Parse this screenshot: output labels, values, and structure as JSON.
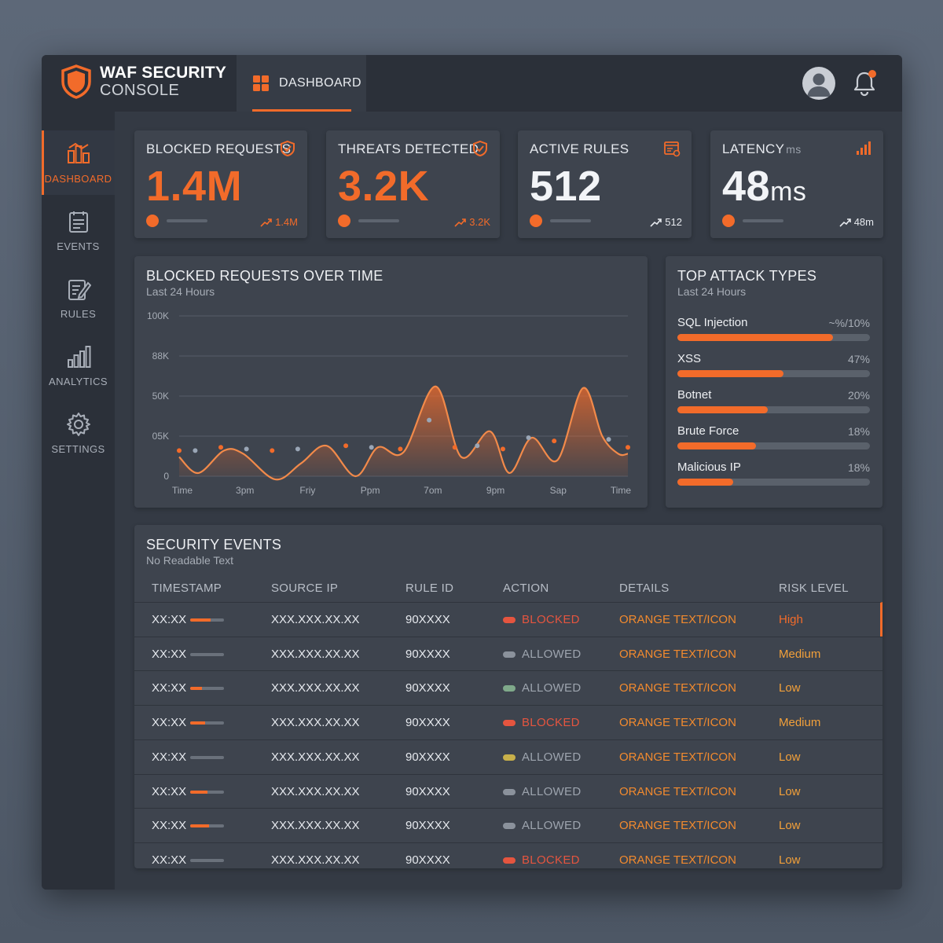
{
  "brand": {
    "line1": "WAF SECURITY",
    "line2": "CONSOLE"
  },
  "topnav": {
    "tab_label": "DASHBOARD"
  },
  "colors": {
    "accent": "#f26b2a",
    "background": "#343a44",
    "card": "#3e444e"
  },
  "sidebar": {
    "items": [
      {
        "label": "DASHBOARD",
        "icon": "dashboard-icon",
        "active": true
      },
      {
        "label": "EVENTS",
        "icon": "events-icon",
        "active": false
      },
      {
        "label": "RULES",
        "icon": "rules-icon",
        "active": false
      },
      {
        "label": "ANALYTICS",
        "icon": "analytics-icon",
        "active": false
      },
      {
        "label": "SETTINGS",
        "icon": "settings-icon",
        "active": false
      }
    ]
  },
  "kpis": {
    "blocked": {
      "title": "BLOCKED REQUESTS",
      "value": "1.4M",
      "trend": "1.4M",
      "icon": "shield-check-icon"
    },
    "threats": {
      "title": "THREATS DETECTED",
      "value": "3.2K",
      "trend": "3.2K",
      "icon": "shield-check-icon"
    },
    "rules": {
      "title": "ACTIVE RULES",
      "value": "512",
      "trend": "512",
      "icon": "rules-list-icon"
    },
    "latency": {
      "title": "LATENCY",
      "title_unit": "ms",
      "value": "48",
      "value_unit": "ms",
      "trend": "48m",
      "icon": "signal-bars-icon"
    }
  },
  "chart_panel": {
    "title": "BLOCKED REQUESTS OVER TIME",
    "subtitle": "Last 24 Hours"
  },
  "chart_data": {
    "type": "area",
    "title": "BLOCKED REQUESTS OVER TIME",
    "subtitle": "Last 24 Hours",
    "x_tick_labels": [
      "Time",
      "3pm",
      "Friy",
      "Ppm",
      "7om",
      "9pm",
      "Sap",
      "Time"
    ],
    "y_tick_labels": [
      "0",
      "05K",
      "50K",
      "88K",
      "100K"
    ],
    "ylim": [
      0,
      100
    ],
    "grid": true,
    "x": [
      0,
      0.3,
      0.7,
      1.0,
      1.5,
      1.9,
      2.3,
      2.75,
      3.1,
      3.5,
      4.0,
      4.4,
      4.85,
      5.15,
      5.5,
      5.9,
      6.3,
      6.6,
      6.85,
      7.0
    ],
    "y": [
      12,
      2,
      16,
      14,
      -2,
      8,
      19,
      0,
      18,
      15,
      56,
      12,
      28,
      2,
      24,
      10,
      55,
      25,
      14,
      14
    ],
    "scatter_points": {
      "x": [
        0.0,
        0.25,
        0.65,
        1.05,
        1.45,
        1.85,
        2.6,
        3.0,
        3.45,
        3.9,
        4.3,
        4.65,
        5.05,
        5.45,
        5.85,
        6.7,
        7.0
      ],
      "y": [
        16,
        16,
        18,
        17,
        16,
        17,
        19,
        18,
        17,
        35,
        18,
        19,
        17,
        24,
        22,
        23,
        18
      ]
    }
  },
  "attacks": {
    "title": "TOP ATTACK TYPES",
    "subtitle": "Last 24 Hours",
    "items": [
      {
        "name": "SQL Injection",
        "pct": "~%/10%",
        "fill": 0.81
      },
      {
        "name": "XSS",
        "pct": "47%",
        "fill": 0.55
      },
      {
        "name": "Botnet",
        "pct": "20%",
        "fill": 0.47
      },
      {
        "name": "Brute Force",
        "pct": "18%",
        "fill": 0.41
      },
      {
        "name": "Malicious IP",
        "pct": "18%",
        "fill": 0.29
      }
    ]
  },
  "events": {
    "title": "SECURITY EVENTS",
    "subtitle": "No Readable Text",
    "columns": [
      "TIMESTAMP",
      "SOURCE IP",
      "RULE ID",
      "ACTION",
      "DETAILS",
      "RISK LEVEL"
    ],
    "rows": [
      {
        "time": "XX:XX",
        "bar": 0.6,
        "ip": "XXX.XXX.XX.XX",
        "rule": "90XXXX",
        "action": "BLOCKED",
        "action_color": "#e5553f",
        "pill_color": "#e5553f",
        "details": "ORANGE TEXT/ICON",
        "risk": "High",
        "risk_color": "#f26b2a"
      },
      {
        "time": "XX:XX",
        "bar": 0.0,
        "ip": "XXX.XXX.XX.XX",
        "rule": "90XXXX",
        "action": "ALLOWED",
        "action_color": "#9da4ae",
        "pill_color": "#8b929c",
        "details": "ORANGE TEXT/ICON",
        "risk": "Medium",
        "risk_color": "#f2a03a"
      },
      {
        "time": "XX:XX",
        "bar": 0.35,
        "ip": "XXX.XXX.XX.XX",
        "rule": "90XXXX",
        "action": "ALLOWED",
        "action_color": "#9da4ae",
        "pill_color": "#7fa98a",
        "details": "ORANGE TEXT/ICON",
        "risk": "Low",
        "risk_color": "#f2a03a"
      },
      {
        "time": "XX:XX",
        "bar": 0.45,
        "ip": "XXX.XXX.XX.XX",
        "rule": "90XXXX",
        "action": "BLOCKED",
        "action_color": "#e5553f",
        "pill_color": "#e5553f",
        "details": "ORANGE TEXT/ICON",
        "risk": "Medium",
        "risk_color": "#f2a03a"
      },
      {
        "time": "XX:XX",
        "bar": 0.0,
        "ip": "XXX.XXX.XX.XX",
        "rule": "90XXXX",
        "action": "ALLOWED",
        "action_color": "#9da4ae",
        "pill_color": "#c8b04a",
        "details": "ORANGE TEXT/ICON",
        "risk": "Low",
        "risk_color": "#f2a03a"
      },
      {
        "time": "XX:XX",
        "bar": 0.5,
        "ip": "XXX.XXX.XX.XX",
        "rule": "90XXXX",
        "action": "ALLOWED",
        "action_color": "#9da4ae",
        "pill_color": "#8b929c",
        "details": "ORANGE TEXT/ICON",
        "risk": "Low",
        "risk_color": "#f2a03a"
      },
      {
        "time": "XX:XX",
        "bar": 0.55,
        "ip": "XXX.XXX.XX.XX",
        "rule": "90XXXX",
        "action": "ALLOWED",
        "action_color": "#9da4ae",
        "pill_color": "#8b929c",
        "details": "ORANGE TEXT/ICON",
        "risk": "Low",
        "risk_color": "#f2a03a"
      },
      {
        "time": "XX:XX",
        "bar": 0.0,
        "ip": "XXX.XXX.XX.XX",
        "rule": "90XXXX",
        "action": "BLOCKED",
        "action_color": "#e5553f",
        "pill_color": "#e5553f",
        "details": "ORANGE TEXT/ICON",
        "risk": "Low",
        "risk_color": "#f2a03a"
      }
    ]
  }
}
